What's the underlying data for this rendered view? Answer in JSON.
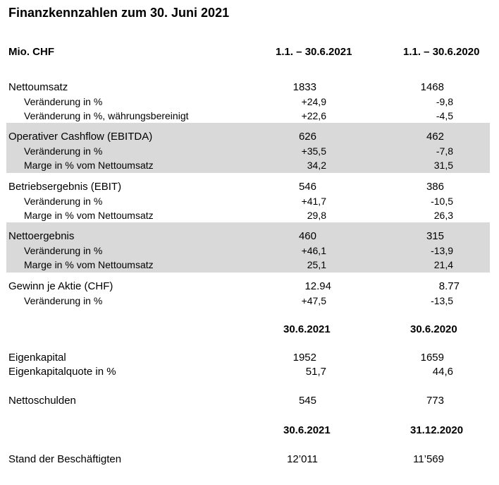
{
  "title": "Finanzkennzahlen zum 30. Juni 2021",
  "header": {
    "unit": "Mio. CHF",
    "col1": "1.1. – 30.6.2021",
    "col2": "1.1. – 30.6.2020"
  },
  "income": [
    {
      "label": "Nettoumsatz",
      "v1": "1833",
      "v2": "1468",
      "sub": [
        {
          "label": "Veränderung in %",
          "v1": "+24,9",
          "v2": "-9,8"
        },
        {
          "label": "Veränderung in %, währungsbereinigt",
          "v1": "+22,6",
          "v2": "-4,5"
        }
      ]
    },
    {
      "label": "Operativer Cashflow (EBITDA)",
      "v1": "626",
      "v2": "462",
      "sub": [
        {
          "label": "Veränderung in %",
          "v1": "+35,5",
          "v2": "-7,8"
        },
        {
          "label": "Marge in % vom Nettoumsatz",
          "v1": "34,2",
          "v2": "31,5"
        }
      ]
    },
    {
      "label": "Betriebsergebnis (EBIT)",
      "v1": "546",
      "v2": "386",
      "sub": [
        {
          "label": "Veränderung in %",
          "v1": "+41,7",
          "v2": "-10,5"
        },
        {
          "label": "Marge in % vom Nettoumsatz",
          "v1": "29,8",
          "v2": "26,3"
        }
      ]
    },
    {
      "label": "Nettoergebnis",
      "v1": "460",
      "v2": "315",
      "sub": [
        {
          "label": "Veränderung in %",
          "v1": "+46,1",
          "v2": "-13,9"
        },
        {
          "label": "Marge in % vom Nettoumsatz",
          "v1": "25,1",
          "v2": "21,4"
        }
      ]
    },
    {
      "label": "Gewinn je Aktie (CHF)",
      "v1": "12.94",
      "v2": "8.77",
      "sub": [
        {
          "label": "Veränderung in %",
          "v1": "+47,5",
          "v2": "-13,5"
        }
      ]
    }
  ],
  "balance_header": {
    "col1": "30.6.2021",
    "col2": "30.6.2020"
  },
  "balance": [
    {
      "label": "Eigenkapital",
      "v1": "1952",
      "v2": "1659"
    },
    {
      "label": "Eigenkapitalquote in %",
      "v1": "51,7",
      "v2": "44,6"
    },
    {
      "label": "Nettoschulden",
      "v1": "545",
      "v2": "773"
    }
  ],
  "employees_header": {
    "col1": "30.6.2021",
    "col2": "31.12.2020"
  },
  "employees": {
    "label": "Stand der Beschäftigten",
    "v1": "12’011",
    "v2": "11’569"
  }
}
